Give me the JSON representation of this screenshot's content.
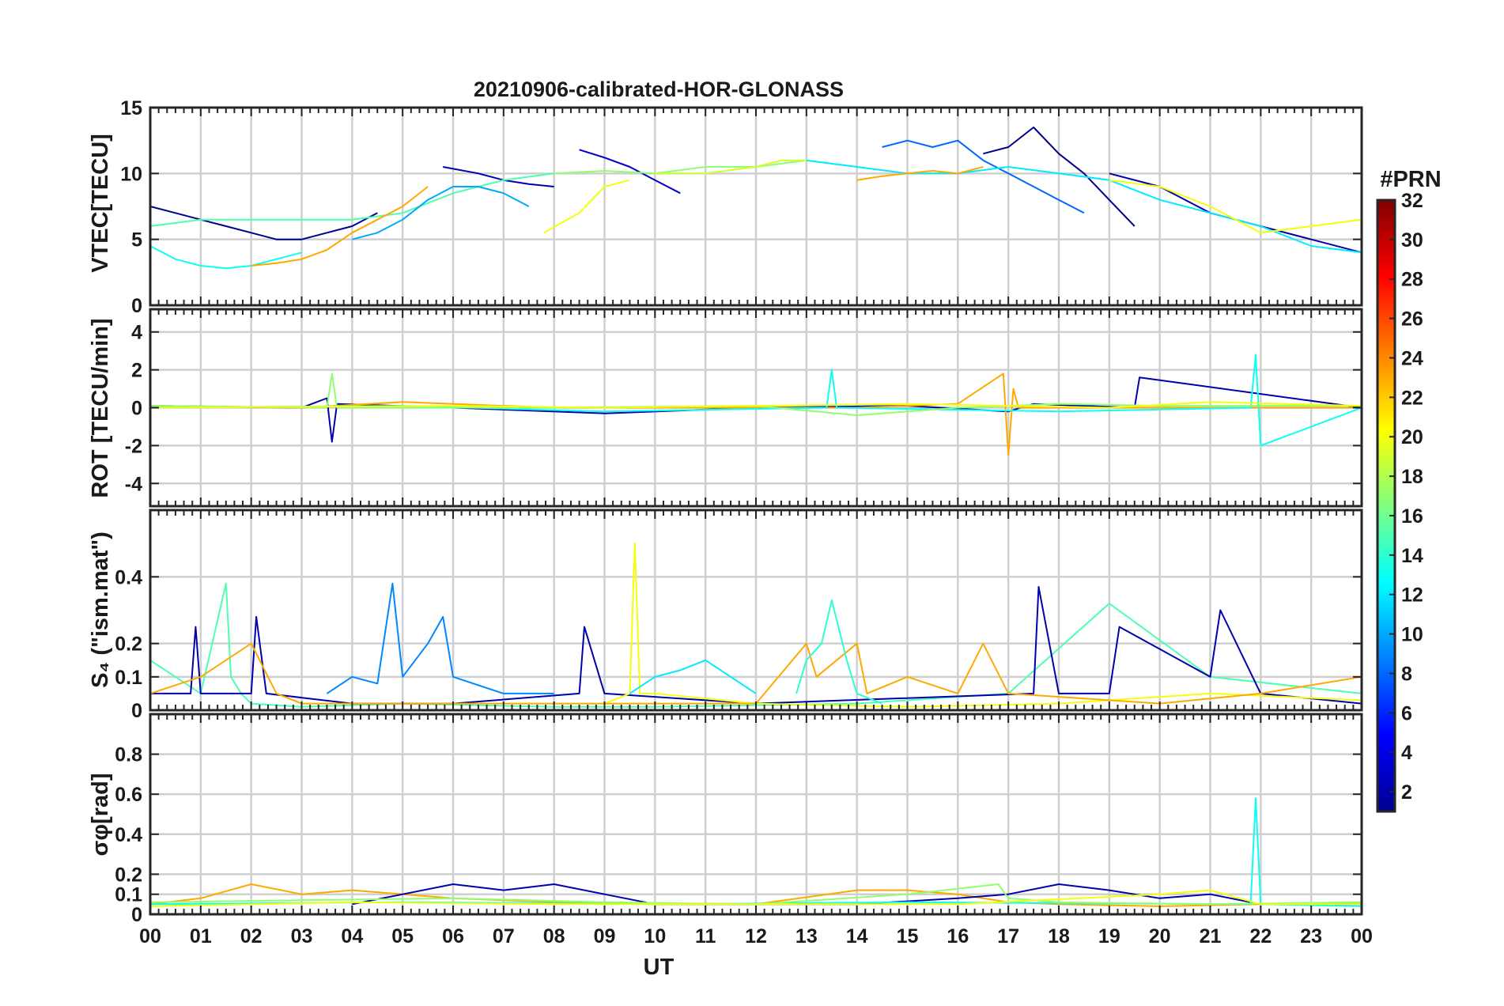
{
  "figure_title": "20210906-calibrated-HOR-GLONASS",
  "colormap": [
    "#00008f",
    "#0000ff",
    "#0080ff",
    "#00ffff",
    "#80ff80",
    "#ffff00",
    "#ff8000",
    "#ff0000",
    "#800000"
  ],
  "chart_data": [
    {
      "type": "line",
      "panel": "vtec",
      "title": "20210906-calibrated-HOR-GLONASS",
      "xlabel": "",
      "ylabel": "VTEC[TECU]",
      "xlim": [
        0,
        24
      ],
      "ylim": [
        0,
        15
      ],
      "yticks": [
        0,
        5,
        10,
        15
      ],
      "grid": true,
      "series": [
        {
          "prn": 1,
          "x": [
            0,
            0.5,
            1,
            1.5,
            2,
            2.5,
            3,
            3.5,
            4,
            4.5
          ],
          "y": [
            7.5,
            7,
            6.5,
            6,
            5.5,
            5,
            5,
            5.5,
            6,
            7
          ]
        },
        {
          "prn": 3,
          "x": [
            8.5,
            9,
            9.5,
            10,
            10.5
          ],
          "y": [
            11.8,
            11.2,
            10.5,
            9.5,
            8.5
          ]
        },
        {
          "prn": 2,
          "x": [
            5.8,
            6.5,
            7,
            7.5,
            8
          ],
          "y": [
            10.5,
            10,
            9.5,
            9.2,
            9
          ]
        },
        {
          "prn": 1,
          "x": [
            16.5,
            17,
            17.5,
            18,
            18.5,
            19,
            19.5
          ],
          "y": [
            11.5,
            12,
            13.5,
            11.5,
            10,
            8,
            6
          ]
        },
        {
          "prn": 2,
          "x": [
            19,
            20,
            21,
            22,
            23,
            24
          ],
          "y": [
            10,
            9,
            7,
            6,
            5,
            4
          ]
        },
        {
          "prn": 8,
          "x": [
            14.5,
            15,
            15.5,
            16,
            16.5,
            17,
            17.5,
            18,
            18.5
          ],
          "y": [
            12,
            12.5,
            12,
            12.5,
            11,
            10,
            9,
            8,
            7
          ]
        },
        {
          "prn": 13,
          "x": [
            0,
            0.5,
            1,
            1.5,
            2,
            2.5,
            3
          ],
          "y": [
            4.5,
            3.5,
            3,
            2.8,
            3,
            3.5,
            4
          ]
        },
        {
          "prn": 12,
          "x": [
            13,
            14,
            15,
            16,
            17,
            18,
            19,
            20,
            21,
            22,
            23,
            24
          ],
          "y": [
            11,
            10.5,
            10,
            10,
            10.5,
            10,
            9.5,
            8,
            7,
            6,
            4.5,
            4
          ]
        },
        {
          "prn": 15,
          "x": [
            0,
            1,
            2,
            3,
            4,
            5,
            6,
            7,
            8
          ],
          "y": [
            6,
            6.5,
            6.5,
            6.5,
            6.5,
            7,
            8.5,
            9.5,
            10
          ]
        },
        {
          "prn": 17,
          "x": [
            8,
            9,
            10,
            11,
            12,
            13
          ],
          "y": [
            10,
            10.2,
            10,
            10.5,
            10.5,
            11
          ]
        },
        {
          "prn": 19,
          "x": [
            10,
            11,
            12,
            12.5,
            13
          ],
          "y": [
            10,
            10,
            10.5,
            11,
            11
          ]
        },
        {
          "prn": 20,
          "x": [
            7.8,
            8.5,
            9,
            9.5
          ],
          "y": [
            5.5,
            7,
            9,
            9.5
          ]
        },
        {
          "prn": 20,
          "x": [
            19,
            20,
            21,
            22,
            23,
            24
          ],
          "y": [
            9.5,
            9,
            7.5,
            5.5,
            6,
            6.5
          ]
        },
        {
          "prn": 23,
          "x": [
            2,
            2.5,
            3,
            3.5,
            4,
            4.5,
            5,
            5.5
          ],
          "y": [
            3,
            3.2,
            3.5,
            4.2,
            5.5,
            6.5,
            7.5,
            9
          ]
        },
        {
          "prn": 23,
          "x": [
            14,
            14.5,
            15,
            15.5,
            16,
            16.5
          ],
          "y": [
            9.5,
            9.8,
            10,
            10.2,
            10,
            10.5
          ]
        },
        {
          "prn": 10,
          "x": [
            4,
            4.5,
            5,
            5.5,
            6,
            6.5,
            7,
            7.5
          ],
          "y": [
            5,
            5.5,
            6.5,
            8,
            9,
            9,
            8.5,
            7.5
          ]
        }
      ]
    },
    {
      "type": "line",
      "panel": "rot",
      "xlabel": "",
      "ylabel": "ROT [TECU/min]",
      "xlim": [
        0,
        24
      ],
      "ylim": [
        -5.2,
        5.2
      ],
      "yticks": [
        -4,
        -2,
        0,
        2,
        4
      ],
      "grid": true,
      "series": [
        {
          "prn": 2,
          "x": [
            0,
            3,
            3.5,
            3.6,
            3.7,
            6,
            9,
            12,
            15,
            17,
            17.5,
            19.5,
            19.6,
            24
          ],
          "y": [
            0.1,
            0,
            0.5,
            -1.8,
            0.2,
            0,
            -0.3,
            0,
            0.1,
            -0.2,
            0.2,
            0,
            1.6,
            0
          ]
        },
        {
          "prn": 23,
          "x": [
            0,
            3,
            5,
            8,
            12,
            14,
            16,
            16.9,
            17,
            17.1,
            17.2,
            20,
            24
          ],
          "y": [
            0.1,
            0,
            0.3,
            0,
            0,
            0,
            0.2,
            1.8,
            -2.5,
            1,
            0,
            0,
            0
          ]
        },
        {
          "prn": 13,
          "x": [
            0,
            5,
            9,
            13.4,
            13.5,
            13.6,
            18,
            21.8,
            21.9,
            22,
            24
          ],
          "y": [
            0,
            0.1,
            -0.2,
            0,
            2,
            0,
            -0.2,
            0,
            2.8,
            -2,
            0
          ]
        },
        {
          "prn": 17,
          "x": [
            0,
            3.5,
            3.6,
            3.7,
            8,
            12,
            14,
            16,
            18,
            20,
            24
          ],
          "y": [
            0.1,
            0,
            1.8,
            0,
            0,
            0.1,
            -0.4,
            0,
            0.2,
            0.1,
            0.1
          ]
        },
        {
          "prn": 20,
          "x": [
            0,
            6,
            9,
            12,
            15,
            19,
            21,
            24
          ],
          "y": [
            0,
            0.1,
            0,
            0.1,
            0.2,
            0,
            0.3,
            0.1
          ]
        }
      ]
    },
    {
      "type": "line",
      "panel": "s4",
      "xlabel": "",
      "ylabel": "S₄ (\"ism.mat\")",
      "xlim": [
        0,
        24
      ],
      "ylim": [
        0,
        0.6
      ],
      "yticks": [
        0,
        0.1,
        0.2,
        0.4
      ],
      "grid": true,
      "series": [
        {
          "prn": 15,
          "x": [
            0,
            1,
            1.5,
            1.6,
            1.8,
            2,
            3,
            5,
            8,
            10,
            14,
            17,
            19,
            21,
            24
          ],
          "y": [
            0.15,
            0.05,
            0.38,
            0.1,
            0.05,
            0.02,
            0.01,
            0.02,
            0.01,
            0.01,
            0.02,
            0.05,
            0.32,
            0.1,
            0.05
          ]
        },
        {
          "prn": 2,
          "x": [
            0,
            0.8,
            0.9,
            1,
            2,
            2.1,
            2.3,
            4,
            6,
            8.5,
            8.6,
            9,
            12,
            17.5,
            17.6,
            18,
            19,
            19.2,
            21,
            21.2,
            22,
            24
          ],
          "y": [
            0.05,
            0.05,
            0.25,
            0.05,
            0.05,
            0.28,
            0.05,
            0.02,
            0.02,
            0.05,
            0.25,
            0.05,
            0.02,
            0.05,
            0.37,
            0.05,
            0.05,
            0.25,
            0.1,
            0.3,
            0.05,
            0.02
          ]
        },
        {
          "prn": 9,
          "x": [
            3.5,
            4,
            4.5,
            4.8,
            5,
            5.5,
            5.8,
            6,
            7,
            8
          ],
          "y": [
            0.05,
            0.1,
            0.08,
            0.38,
            0.1,
            0.2,
            0.28,
            0.1,
            0.05,
            0.05
          ]
        },
        {
          "prn": 20,
          "x": [
            9,
            9.5,
            9.6,
            9.7,
            10,
            12,
            15,
            18,
            21,
            24
          ],
          "y": [
            0.02,
            0.05,
            0.5,
            0.05,
            0.05,
            0.02,
            0.01,
            0.02,
            0.05,
            0.03
          ]
        },
        {
          "prn": 23,
          "x": [
            0,
            1,
            2,
            2.5,
            3,
            12,
            13,
            13.2,
            14,
            14.2,
            15,
            16,
            16.5,
            17,
            20,
            22,
            24
          ],
          "y": [
            0.05,
            0.1,
            0.2,
            0.05,
            0.02,
            0.02,
            0.2,
            0.1,
            0.2,
            0.05,
            0.1,
            0.05,
            0.2,
            0.05,
            0.02,
            0.05,
            0.1
          ]
        },
        {
          "prn": 12,
          "x": [
            9.5,
            10,
            10.5,
            11,
            11.5,
            12
          ],
          "y": [
            0.05,
            0.1,
            0.12,
            0.15,
            0.1,
            0.05
          ]
        },
        {
          "prn": 14,
          "x": [
            12.8,
            13,
            13.3,
            13.5,
            13.8,
            14,
            14.5
          ],
          "y": [
            0.05,
            0.15,
            0.2,
            0.33,
            0.15,
            0.05,
            0.02
          ]
        }
      ]
    },
    {
      "type": "line",
      "panel": "sigma_phi",
      "xlabel": "UT",
      "ylabel": "σφ[rad]",
      "xlim": [
        0,
        24
      ],
      "ylim": [
        0,
        1
      ],
      "yticks": [
        0,
        0.1,
        0.2,
        0.4,
        0.6,
        0.8
      ],
      "xticks": [
        0,
        1,
        2,
        3,
        4,
        5,
        6,
        7,
        8,
        9,
        10,
        11,
        12,
        13,
        14,
        15,
        16,
        17,
        18,
        19,
        20,
        21,
        22,
        23,
        24
      ],
      "xtick_labels": [
        "00",
        "01",
        "02",
        "03",
        "04",
        "05",
        "06",
        "07",
        "08",
        "09",
        "10",
        "11",
        "12",
        "13",
        "14",
        "15",
        "16",
        "17",
        "18",
        "19",
        "20",
        "21",
        "22",
        "23",
        "00"
      ],
      "grid": true,
      "series": [
        {
          "prn": 23,
          "x": [
            0,
            1,
            2,
            3,
            4,
            5,
            6,
            8,
            10,
            12,
            14,
            15,
            16,
            17,
            18,
            20,
            22,
            24
          ],
          "y": [
            0.05,
            0.08,
            0.15,
            0.1,
            0.12,
            0.1,
            0.08,
            0.06,
            0.05,
            0.05,
            0.12,
            0.12,
            0.1,
            0.06,
            0.05,
            0.04,
            0.05,
            0.06
          ]
        },
        {
          "prn": 2,
          "x": [
            4,
            5,
            6,
            7,
            8,
            9,
            10,
            14,
            16,
            17,
            18,
            19,
            20,
            21,
            22,
            24
          ],
          "y": [
            0.05,
            0.1,
            0.15,
            0.12,
            0.15,
            0.1,
            0.05,
            0.05,
            0.08,
            0.1,
            0.15,
            0.12,
            0.08,
            0.1,
            0.05,
            0.05
          ]
        },
        {
          "prn": 13,
          "x": [
            0,
            5,
            10,
            15,
            21.8,
            21.9,
            22,
            24
          ],
          "y": [
            0.05,
            0.06,
            0.05,
            0.06,
            0.05,
            0.58,
            0.05,
            0.04
          ]
        },
        {
          "prn": 17,
          "x": [
            0,
            3,
            6,
            9,
            12,
            15,
            16.8,
            17,
            18,
            21,
            24
          ],
          "y": [
            0.06,
            0.07,
            0.08,
            0.06,
            0.05,
            0.1,
            0.15,
            0.08,
            0.06,
            0.05,
            0.06
          ]
        },
        {
          "prn": 20,
          "x": [
            0,
            4,
            8,
            12,
            16,
            20,
            21,
            22,
            24
          ],
          "y": [
            0.04,
            0.06,
            0.05,
            0.05,
            0.05,
            0.1,
            0.12,
            0.05,
            0.05
          ]
        }
      ]
    }
  ],
  "colorbar": {
    "title": "#PRN",
    "min": 1,
    "max": 32,
    "ticks": [
      2,
      4,
      6,
      8,
      10,
      12,
      14,
      16,
      18,
      20,
      22,
      24,
      26,
      28,
      30,
      32
    ]
  }
}
